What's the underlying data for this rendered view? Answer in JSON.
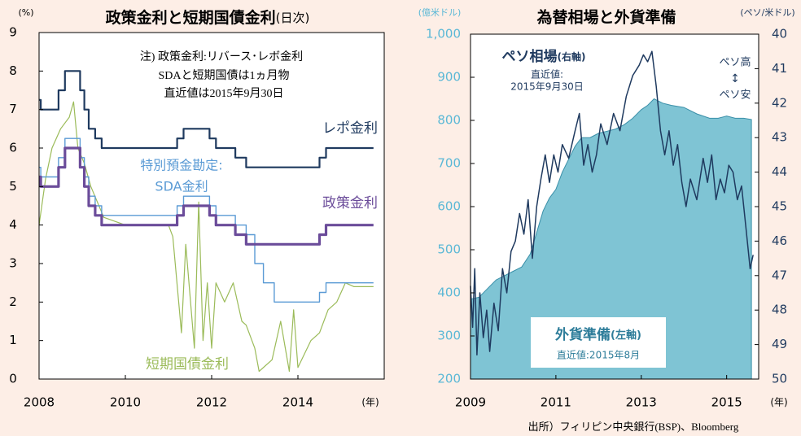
{
  "chart_data": [
    {
      "type": "line",
      "title": "政策金利と短期国債金利",
      "subtitle": "(日次)",
      "y_unit": "(%)",
      "x_unit": "(年)",
      "annotations": [
        "注) 政策金利:リバース･レボ金利",
        "SDAと短期国債は1ヵ月物",
        "直近値は2015年9月30日"
      ],
      "xlim": [
        2008,
        2016
      ],
      "xticks": [
        2008,
        2010,
        2012,
        2014
      ],
      "ylim": [
        0,
        9
      ],
      "yticks": [
        0,
        1,
        2,
        3,
        4,
        5,
        6,
        7,
        8,
        9
      ],
      "series": [
        {
          "name": [
            "レポ金利"
          ],
          "color": "#1f3a5f",
          "width": 2.2,
          "x": [
            2008,
            2008.04,
            2008.04,
            2008.45,
            2008.45,
            2008.6,
            2008.6,
            2008.95,
            2008.95,
            2009.05,
            2009.05,
            2009.15,
            2009.15,
            2009.3,
            2009.3,
            2009.45,
            2009.45,
            2011.2,
            2011.2,
            2011.35,
            2011.35,
            2011.95,
            2011.95,
            2012.1,
            2012.1,
            2012.55,
            2012.55,
            2012.8,
            2012.8,
            2014.5,
            2014.5,
            2014.65,
            2014.65,
            2015.75
          ],
          "values": [
            7.25,
            7.25,
            7,
            7,
            7.5,
            7.5,
            8,
            8,
            7.5,
            7.5,
            7,
            7,
            6.5,
            6.5,
            6.25,
            6.25,
            6,
            6,
            6.25,
            6.25,
            6.5,
            6.5,
            6.25,
            6.25,
            6,
            6,
            5.75,
            5.75,
            5.5,
            5.5,
            5.75,
            5.75,
            6,
            6
          ]
        },
        {
          "name": [
            "政策金利"
          ],
          "color": "#6b4c9a",
          "width": 3.2,
          "x": [
            2008,
            2008.04,
            2008.04,
            2008.45,
            2008.45,
            2008.6,
            2008.6,
            2008.95,
            2008.95,
            2009.05,
            2009.05,
            2009.15,
            2009.15,
            2009.3,
            2009.3,
            2009.45,
            2009.45,
            2011.2,
            2011.2,
            2011.35,
            2011.35,
            2011.95,
            2011.95,
            2012.1,
            2012.1,
            2012.55,
            2012.55,
            2012.8,
            2012.8,
            2014.5,
            2014.5,
            2014.65,
            2014.65,
            2015.75
          ],
          "values": [
            5.25,
            5.25,
            5,
            5,
            5.5,
            5.5,
            6,
            6,
            5.5,
            5.5,
            5,
            5,
            4.5,
            4.5,
            4.25,
            4.25,
            4,
            4,
            4.25,
            4.25,
            4.5,
            4.5,
            4.25,
            4.25,
            4,
            4,
            3.75,
            3.75,
            3.5,
            3.5,
            3.75,
            3.75,
            4,
            4
          ]
        },
        {
          "name": [
            "特別預金勘定:",
            "SDA金利"
          ],
          "color": "#5b9bd5",
          "width": 1.4,
          "x": [
            2008,
            2008.04,
            2008.04,
            2008.45,
            2008.45,
            2008.6,
            2008.6,
            2008.95,
            2008.95,
            2009.05,
            2009.05,
            2009.15,
            2009.15,
            2009.3,
            2009.3,
            2009.45,
            2009.45,
            2011.2,
            2011.2,
            2011.35,
            2011.35,
            2011.95,
            2011.95,
            2012.1,
            2012.1,
            2012.55,
            2012.55,
            2012.8,
            2012.8,
            2013,
            2013,
            2013.2,
            2013.2,
            2013.45,
            2013.45,
            2014.5,
            2014.5,
            2014.65,
            2014.65,
            2015.75
          ],
          "values": [
            5.5,
            5.5,
            5.25,
            5.25,
            5.75,
            5.75,
            6.25,
            6.25,
            5.75,
            5.75,
            5.25,
            5.25,
            4.75,
            4.75,
            4.5,
            4.5,
            4.25,
            4.25,
            4.5,
            4.5,
            4.75,
            4.75,
            4.5,
            4.5,
            4.25,
            4.25,
            4,
            4,
            3.75,
            3.75,
            3,
            3,
            2.5,
            2.5,
            2,
            2,
            2.25,
            2.25,
            2.5,
            2.5
          ]
        },
        {
          "name": [
            "短期国債金利"
          ],
          "color": "#9bbb59",
          "width": 1.2,
          "x": [
            2008,
            2008.15,
            2008.3,
            2008.5,
            2008.7,
            2008.8,
            2008.9,
            2009.05,
            2009.2,
            2009.5,
            2010,
            2010.8,
            2011,
            2011.1,
            2011.3,
            2011.4,
            2011.6,
            2011.7,
            2011.8,
            2011.9,
            2012,
            2012.1,
            2012.3,
            2012.5,
            2012.7,
            2012.8,
            2013,
            2013.1,
            2013.4,
            2013.6,
            2013.8,
            2013.9,
            2014,
            2014.3,
            2014.5,
            2014.7,
            2014.9,
            2015.1,
            2015.3,
            2015.75
          ],
          "values": [
            4,
            5.2,
            6,
            6.5,
            6.8,
            7.2,
            6,
            5.6,
            5,
            4.2,
            4,
            4,
            4,
            3.7,
            1.2,
            3.5,
            0.8,
            4.6,
            1,
            2.5,
            0.8,
            2.5,
            2,
            2.5,
            1.5,
            1.4,
            0.8,
            0.2,
            0.5,
            1.5,
            0.2,
            1.8,
            0.3,
            1,
            1.2,
            1.8,
            2,
            2.5,
            2.4,
            2.4
          ]
        }
      ]
    },
    {
      "type": "combo",
      "title": "為替相場と外貨準備",
      "y_unit": "(億米ドル)",
      "y2_unit": "(ペソ/米ドル)",
      "x_unit": "(年)",
      "annotations": [
        "ペソ高",
        "↕",
        "ペソ安"
      ],
      "xlim": [
        2009,
        2015.75
      ],
      "xticks": [
        2009,
        2011,
        2013,
        2015
      ],
      "ylim": [
        200,
        1000
      ],
      "yticks": [
        200,
        300,
        400,
        500,
        600,
        700,
        800,
        900,
        {
          "value": 1000,
          "label": "1,000"
        }
      ],
      "y2lim": [
        40,
        50
      ],
      "y2_inverted": true,
      "y2ticks": [
        40,
        41,
        42,
        43,
        44,
        45,
        46,
        47,
        48,
        49,
        50
      ],
      "series": [
        {
          "name": "外貨準備",
          "axis_label": "(左軸)",
          "note": "直近値:2015年8月",
          "type": "area",
          "color": "#7fc4d4",
          "stroke": "#3a8fa8",
          "x": [
            2009,
            2009.2,
            2009.4,
            2009.6,
            2009.8,
            2010,
            2010.2,
            2010.4,
            2010.55,
            2010.7,
            2010.85,
            2011,
            2011.15,
            2011.3,
            2011.45,
            2011.6,
            2011.8,
            2012,
            2012.2,
            2012.4,
            2012.6,
            2012.8,
            2013,
            2013.15,
            2013.3,
            2013.5,
            2013.7,
            2014,
            2014.3,
            2014.6,
            2014.8,
            2015,
            2015.2,
            2015.4,
            2015.58
          ],
          "values": [
            385,
            390,
            410,
            430,
            440,
            450,
            460,
            490,
            540,
            590,
            620,
            640,
            680,
            710,
            740,
            760,
            760,
            770,
            775,
            780,
            790,
            805,
            825,
            835,
            850,
            840,
            835,
            830,
            815,
            805,
            805,
            810,
            805,
            805,
            802
          ]
        },
        {
          "name": "ペソ相場",
          "axis_label": "(右軸)",
          "note": [
            "直近値:",
            "2015年9月30日"
          ],
          "type": "line",
          "axis": "y2",
          "color": "#1f3a5f",
          "x": [
            2009,
            2009.05,
            2009.1,
            2009.15,
            2009.22,
            2009.3,
            2009.38,
            2009.45,
            2009.55,
            2009.65,
            2009.75,
            2009.85,
            2009.95,
            2010.05,
            2010.15,
            2010.25,
            2010.35,
            2010.45,
            2010.55,
            2010.65,
            2010.75,
            2010.85,
            2010.95,
            2011.05,
            2011.15,
            2011.3,
            2011.45,
            2011.55,
            2011.65,
            2011.75,
            2011.85,
            2011.95,
            2012.05,
            2012.2,
            2012.35,
            2012.5,
            2012.65,
            2012.8,
            2012.95,
            2013.05,
            2013.15,
            2013.25,
            2013.35,
            2013.45,
            2013.55,
            2013.65,
            2013.75,
            2013.85,
            2013.95,
            2014.05,
            2014.15,
            2014.3,
            2014.45,
            2014.55,
            2014.65,
            2014.75,
            2014.85,
            2014.95,
            2015.05,
            2015.15,
            2015.25,
            2015.35,
            2015.45,
            2015.55,
            2015.62
          ],
          "values": [
            47.3,
            48.5,
            46.8,
            49.3,
            47.5,
            48.8,
            48,
            49.2,
            47.8,
            48.6,
            46.8,
            47.5,
            46.3,
            46,
            45.2,
            45.8,
            44.8,
            46.5,
            45,
            44.2,
            43.5,
            44.3,
            43.5,
            44,
            43.2,
            43.6,
            42.8,
            42.3,
            43.8,
            43.2,
            44,
            43.5,
            42.6,
            43.2,
            42.3,
            42.8,
            41.8,
            41.2,
            40.9,
            40.6,
            40.8,
            40.5,
            41.5,
            42.8,
            43.5,
            42.8,
            43.8,
            43.2,
            44.3,
            45,
            44.2,
            44.8,
            43.6,
            44.3,
            43.5,
            44.8,
            44.2,
            44.6,
            43.8,
            44,
            44.8,
            44.4,
            45.6,
            46.8,
            46.4
          ]
        }
      ]
    }
  ],
  "source": "出所）フィリピン中央銀行(BSP)、Bloomberg"
}
